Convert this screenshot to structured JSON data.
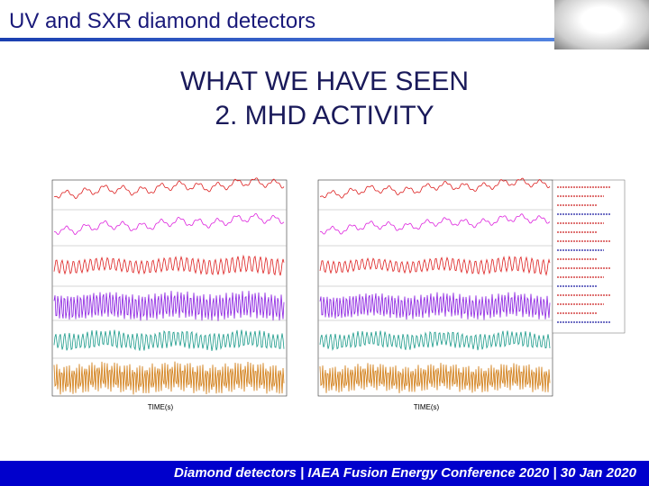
{
  "header": {
    "title": "UV and SXR diamond detectors"
  },
  "heading": {
    "lines": [
      "WHAT WE HAVE SEEN",
      "2. MHD ACTIVITY"
    ]
  },
  "figure": {
    "panels": [
      {
        "x_label": "TIME(s)"
      },
      {
        "x_label": "TIME(s)"
      }
    ]
  },
  "footer": {
    "text": "Diamond detectors | IAEA Fusion Energy Conference 2020 | 30 Jan 2020"
  }
}
